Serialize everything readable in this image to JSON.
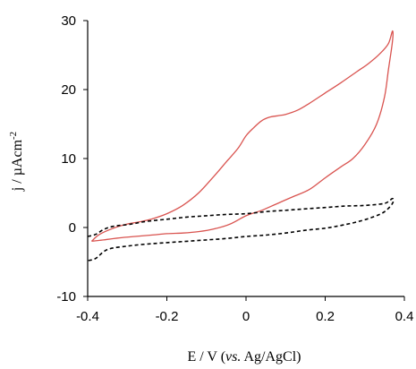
{
  "chart_data": {
    "type": "line",
    "title": "",
    "xlabel": {
      "prefix": "E / V (",
      "italic": "vs.",
      "suffix": " Ag/AgCl)"
    },
    "ylabel": {
      "main": "j / µAcm",
      "superscript": "-2"
    },
    "xlim": [
      -0.4,
      0.4
    ],
    "ylim": [
      -10,
      30
    ],
    "x_ticks": [
      -0.4,
      -0.2,
      0,
      0.2,
      0.4
    ],
    "x_tick_labels": [
      "-0.4",
      "-0.2",
      "0",
      "0.2",
      "0.4"
    ],
    "y_ticks": [
      -10,
      0,
      10,
      20,
      30
    ],
    "y_tick_labels": [
      "-10",
      "0",
      "10",
      "20",
      "30"
    ],
    "grid": false,
    "legend": "none",
    "series": [
      {
        "style": "solid",
        "color": "#d9534f",
        "x": [
          -0.39,
          -0.37,
          -0.33,
          -0.3,
          -0.27,
          -0.24,
          -0.2,
          -0.16,
          -0.12,
          -0.08,
          -0.05,
          -0.02,
          0,
          0.02,
          0.04,
          0.06,
          0.08,
          0.1,
          0.13,
          0.16,
          0.2,
          0.24,
          0.28,
          0.31,
          0.34,
          0.36,
          0.37,
          0.37,
          0.36,
          0.35,
          0.33,
          0.3,
          0.27,
          0.24,
          0.2,
          0.16,
          0.12,
          0.08,
          0.04,
          0,
          -0.04,
          -0.08,
          -0.12,
          -0.16,
          -0.2,
          -0.24,
          -0.28,
          -0.32,
          -0.36,
          -0.39
        ],
        "y": [
          -2,
          -1,
          0,
          0.5,
          0.8,
          1.2,
          2,
          3.2,
          5,
          7.5,
          9.5,
          11.5,
          13.3,
          14.5,
          15.5,
          16,
          16.2,
          16.4,
          17,
          18,
          19.5,
          21,
          22.6,
          23.8,
          25.3,
          26.7,
          28.5,
          27,
          23,
          19,
          15,
          12,
          10,
          8.8,
          7.2,
          5.5,
          4.5,
          3.5,
          2.5,
          1.7,
          0.5,
          -0.2,
          -0.6,
          -0.8,
          -0.9,
          -1.1,
          -1.3,
          -1.5,
          -1.8,
          -2
        ]
      },
      {
        "style": "dashed",
        "color": "#000000",
        "x": [
          -0.4,
          -0.38,
          -0.36,
          -0.34,
          -0.32,
          -0.3,
          -0.28,
          -0.25,
          -0.2,
          -0.15,
          -0.1,
          -0.05,
          0,
          0.05,
          0.1,
          0.15,
          0.2,
          0.25,
          0.3,
          0.35,
          0.37,
          0.37,
          0.35,
          0.32,
          0.28,
          0.24,
          0.2,
          0.15,
          0.1,
          0.05,
          0,
          -0.05,
          -0.1,
          -0.15,
          -0.2,
          -0.25,
          -0.3,
          -0.35,
          -0.38,
          -0.4
        ],
        "y": [
          -1.3,
          -1,
          -0.3,
          0.1,
          0.3,
          0.4,
          0.6,
          0.9,
          1.2,
          1.5,
          1.7,
          1.9,
          2,
          2.3,
          2.5,
          2.7,
          2.9,
          3.1,
          3.2,
          3.5,
          4.2,
          3.5,
          2.3,
          1.5,
          0.8,
          0.3,
          -0.1,
          -0.4,
          -0.8,
          -1.1,
          -1.3,
          -1.6,
          -1.8,
          -2,
          -2.2,
          -2.4,
          -2.7,
          -3.2,
          -4.5,
          -4.8
        ]
      }
    ]
  }
}
